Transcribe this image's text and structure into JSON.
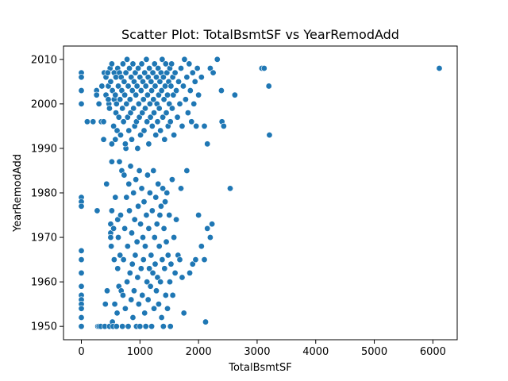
{
  "chart_data": {
    "type": "scatter",
    "title": "Scatter Plot: TotalBsmtSF vs YearRemodAdd",
    "xlabel": "TotalBsmtSF",
    "ylabel": "YearRemodAdd",
    "xlim": [
      -305,
      6415
    ],
    "ylim": [
      1947,
      2013
    ],
    "xticks": [
      0,
      1000,
      2000,
      3000,
      4000,
      5000,
      6000
    ],
    "yticks": [
      1950,
      1960,
      1970,
      1980,
      1990,
      2000,
      2010
    ],
    "grid": false,
    "marker_color": "#1f77b4",
    "points": [
      [
        0,
        2007
      ],
      [
        0,
        2006
      ],
      [
        0,
        2003
      ],
      [
        0,
        2000
      ],
      [
        0,
        1979
      ],
      [
        0,
        1978
      ],
      [
        0,
        1977
      ],
      [
        0,
        1967
      ],
      [
        0,
        1965
      ],
      [
        0,
        1962
      ],
      [
        0,
        1959
      ],
      [
        0,
        1957
      ],
      [
        0,
        1956
      ],
      [
        0,
        1955
      ],
      [
        0,
        1954
      ],
      [
        0,
        1952
      ],
      [
        0,
        1950
      ],
      [
        100,
        1996
      ],
      [
        200,
        1996
      ],
      [
        260,
        2003
      ],
      [
        260,
        2002
      ],
      [
        270,
        1976
      ],
      [
        280,
        1950
      ],
      [
        300,
        1950
      ],
      [
        330,
        1950
      ],
      [
        340,
        1996
      ],
      [
        380,
        1992
      ],
      [
        380,
        1996
      ],
      [
        390,
        2007
      ],
      [
        400,
        1950
      ],
      [
        410,
        1955
      ],
      [
        420,
        2002
      ],
      [
        430,
        1982
      ],
      [
        440,
        1958
      ],
      [
        460,
        2004
      ],
      [
        470,
        2000
      ],
      [
        480,
        1950
      ],
      [
        490,
        2008
      ],
      [
        500,
        1973
      ],
      [
        500,
        1971
      ],
      [
        500,
        1970
      ],
      [
        510,
        1968
      ],
      [
        520,
        1991
      ],
      [
        520,
        1987
      ],
      [
        520,
        1976
      ],
      [
        530,
        1951
      ],
      [
        540,
        1950
      ],
      [
        550,
        1972
      ],
      [
        560,
        2001
      ],
      [
        560,
        1965
      ],
      [
        570,
        1955
      ],
      [
        580,
        1992
      ],
      [
        580,
        1979
      ],
      [
        590,
        1998
      ],
      [
        600,
        1950
      ],
      [
        610,
        1953
      ],
      [
        620,
        1974
      ],
      [
        620,
        1963
      ],
      [
        630,
        1970
      ],
      [
        640,
        1959
      ],
      [
        650,
        1987
      ],
      [
        660,
        1966
      ],
      [
        670,
        1975
      ],
      [
        680,
        1958
      ],
      [
        690,
        1985
      ],
      [
        700,
        1950
      ],
      [
        710,
        1957
      ],
      [
        720,
        1965
      ],
      [
        730,
        1984
      ],
      [
        740,
        1972
      ],
      [
        750,
        1954
      ],
      [
        760,
        1990
      ],
      [
        770,
        1979
      ],
      [
        780,
        1960
      ],
      [
        790,
        1968
      ],
      [
        800,
        1950
      ],
      [
        810,
        1982
      ],
      [
        820,
        1976
      ],
      [
        830,
        1962
      ],
      [
        840,
        1986
      ],
      [
        850,
        1956
      ],
      [
        860,
        1971
      ],
      [
        870,
        1964
      ],
      [
        880,
        1952
      ],
      [
        890,
        1980
      ],
      [
        900,
        1958
      ],
      [
        910,
        1974
      ],
      [
        920,
        1966
      ],
      [
        930,
        1983
      ],
      [
        940,
        1950
      ],
      [
        950,
        1969
      ],
      [
        960,
        1961
      ],
      [
        970,
        1977
      ],
      [
        980,
        1955
      ],
      [
        990,
        1985
      ],
      [
        1000,
        1950
      ],
      [
        1010,
        1973
      ],
      [
        1020,
        1963
      ],
      [
        1030,
        1981
      ],
      [
        1040,
        1957
      ],
      [
        1050,
        1970
      ],
      [
        1060,
        1965
      ],
      [
        1070,
        1978
      ],
      [
        1080,
        1953
      ],
      [
        1090,
        1968
      ],
      [
        1100,
        1950
      ],
      [
        1110,
        1975
      ],
      [
        1120,
        1960
      ],
      [
        1130,
        1984
      ],
      [
        1140,
        1956
      ],
      [
        1150,
        1972
      ],
      [
        1160,
        1963
      ],
      [
        1170,
        1980
      ],
      [
        1180,
        1959
      ],
      [
        1190,
        1966
      ],
      [
        1200,
        1950
      ],
      [
        1210,
        1976
      ],
      [
        1220,
        1962
      ],
      [
        1230,
        1985
      ],
      [
        1240,
        1954
      ],
      [
        1250,
        1970
      ],
      [
        1260,
        1964
      ],
      [
        1270,
        1979
      ],
      [
        1280,
        1958
      ],
      [
        1290,
        1973
      ],
      [
        1300,
        1961
      ],
      [
        1310,
        1982
      ],
      [
        1320,
        1955
      ],
      [
        1330,
        1968
      ],
      [
        1340,
        1975
      ],
      [
        1350,
        1960
      ],
      [
        1360,
        1977
      ],
      [
        1370,
        1952
      ],
      [
        1380,
        1965
      ],
      [
        1390,
        1981
      ],
      [
        1400,
        1950
      ],
      [
        1410,
        1972
      ],
      [
        1420,
        1963
      ],
      [
        1430,
        1978
      ],
      [
        1440,
        1957
      ],
      [
        1450,
        1969
      ],
      [
        1460,
        1980
      ],
      [
        1470,
        1954
      ],
      [
        1480,
        1966
      ],
      [
        1500,
        1975
      ],
      [
        1510,
        1960
      ],
      [
        1520,
        1950
      ],
      [
        1530,
        1964
      ],
      [
        1550,
        1983
      ],
      [
        1560,
        1957
      ],
      [
        1580,
        1970
      ],
      [
        1600,
        1962
      ],
      [
        1620,
        1974
      ],
      [
        1650,
        1966
      ],
      [
        1680,
        1965
      ],
      [
        1700,
        1981
      ],
      [
        1720,
        1961
      ],
      [
        1750,
        1953
      ],
      [
        1800,
        1985
      ],
      [
        1850,
        1962
      ],
      [
        1900,
        1964
      ],
      [
        1950,
        1965
      ],
      [
        2000,
        1975
      ],
      [
        2050,
        1968
      ],
      [
        2100,
        1965
      ],
      [
        2120,
        1951
      ],
      [
        2150,
        1972
      ],
      [
        2200,
        1970
      ],
      [
        2230,
        1973
      ],
      [
        2540,
        1981
      ],
      [
        300,
        2000
      ],
      [
        350,
        2004
      ],
      [
        420,
        2006
      ],
      [
        450,
        2007
      ],
      [
        460,
        2001
      ],
      [
        480,
        1999
      ],
      [
        500,
        2005
      ],
      [
        520,
        2009
      ],
      [
        530,
        2003
      ],
      [
        550,
        1995
      ],
      [
        560,
        2007
      ],
      [
        580,
        2002
      ],
      [
        590,
        2006
      ],
      [
        600,
        2000
      ],
      [
        610,
        1994
      ],
      [
        620,
        2008
      ],
      [
        630,
        2004
      ],
      [
        640,
        1997
      ],
      [
        650,
        2007
      ],
      [
        660,
        2001
      ],
      [
        670,
        1993
      ],
      [
        680,
        2006
      ],
      [
        690,
        2003
      ],
      [
        700,
        1999
      ],
      [
        710,
        2009
      ],
      [
        720,
        1996
      ],
      [
        730,
        2005
      ],
      [
        740,
        2002
      ],
      [
        750,
        1991
      ],
      [
        760,
        2007
      ],
      [
        770,
        2000
      ],
      [
        780,
        2010
      ],
      [
        790,
        1997
      ],
      [
        800,
        2004
      ],
      [
        810,
        1994
      ],
      [
        820,
        2008
      ],
      [
        830,
        2001
      ],
      [
        840,
        1998
      ],
      [
        850,
        2006
      ],
      [
        860,
        1992
      ],
      [
        870,
        2003
      ],
      [
        880,
        2009
      ],
      [
        890,
        1999
      ],
      [
        900,
        2005
      ],
      [
        910,
        1995
      ],
      [
        920,
        2007
      ],
      [
        930,
        2002
      ],
      [
        940,
        1996
      ],
      [
        950,
        2004
      ],
      [
        960,
        1990
      ],
      [
        970,
        2008
      ],
      [
        980,
        2000
      ],
      [
        990,
        1997
      ],
      [
        1000,
        2006
      ],
      [
        1010,
        1993
      ],
      [
        1020,
        2003
      ],
      [
        1030,
        2009
      ],
      [
        1040,
        1998
      ],
      [
        1050,
        2005
      ],
      [
        1060,
        2001
      ],
      [
        1070,
        1994
      ],
      [
        1080,
        2007
      ],
      [
        1090,
        1999
      ],
      [
        1100,
        2004
      ],
      [
        1110,
        2010
      ],
      [
        1120,
        1996
      ],
      [
        1130,
        2002
      ],
      [
        1140,
        2006
      ],
      [
        1150,
        1991
      ],
      [
        1160,
        2008
      ],
      [
        1170,
        2000
      ],
      [
        1180,
        1997
      ],
      [
        1190,
        2005
      ],
      [
        1200,
        2003
      ],
      [
        1210,
        1995
      ],
      [
        1220,
        2007
      ],
      [
        1230,
        2001
      ],
      [
        1240,
        1998
      ],
      [
        1250,
        2009
      ],
      [
        1260,
        2004
      ],
      [
        1270,
        1993
      ],
      [
        1280,
        2006
      ],
      [
        1290,
        2000
      ],
      [
        1300,
        1996
      ],
      [
        1310,
        2008
      ],
      [
        1320,
        2002
      ],
      [
        1330,
        1999
      ],
      [
        1340,
        2005
      ],
      [
        1350,
        1994
      ],
      [
        1360,
        2007
      ],
      [
        1370,
        2003
      ],
      [
        1380,
        2010
      ],
      [
        1390,
        1997
      ],
      [
        1400,
        2006
      ],
      [
        1410,
        2001
      ],
      [
        1420,
        1992
      ],
      [
        1430,
        2004
      ],
      [
        1440,
        2009
      ],
      [
        1450,
        1998
      ],
      [
        1460,
        2007
      ],
      [
        1470,
        2002
      ],
      [
        1480,
        1995
      ],
      [
        1490,
        2005
      ],
      [
        1500,
        2000
      ],
      [
        1510,
        2008
      ],
      [
        1520,
        1996
      ],
      [
        1530,
        2004
      ],
      [
        1540,
        2009
      ],
      [
        1550,
        1999
      ],
      [
        1560,
        2006
      ],
      [
        1570,
        2002
      ],
      [
        1580,
        1993
      ],
      [
        1600,
        2007
      ],
      [
        1620,
        2003
      ],
      [
        1640,
        1997
      ],
      [
        1660,
        2005
      ],
      [
        1680,
        2000
      ],
      [
        1700,
        2008
      ],
      [
        1720,
        1995
      ],
      [
        1740,
        2004
      ],
      [
        1760,
        2010
      ],
      [
        1780,
        2001
      ],
      [
        1800,
        2006
      ],
      [
        1820,
        1998
      ],
      [
        1840,
        2009
      ],
      [
        1860,
        2003
      ],
      [
        1880,
        1996
      ],
      [
        1900,
        2007
      ],
      [
        1920,
        2000
      ],
      [
        1940,
        2005
      ],
      [
        1960,
        1995
      ],
      [
        1980,
        2008
      ],
      [
        2000,
        2002
      ],
      [
        2050,
        2006
      ],
      [
        2100,
        1995
      ],
      [
        2150,
        1991
      ],
      [
        2200,
        2008
      ],
      [
        2250,
        2007
      ],
      [
        2320,
        2010
      ],
      [
        2390,
        2003
      ],
      [
        2400,
        1996
      ],
      [
        2430,
        1995
      ],
      [
        2620,
        2002
      ],
      [
        3080,
        2008
      ],
      [
        3120,
        2008
      ],
      [
        3200,
        2004
      ],
      [
        3210,
        1993
      ],
      [
        6110,
        2008
      ]
    ]
  }
}
